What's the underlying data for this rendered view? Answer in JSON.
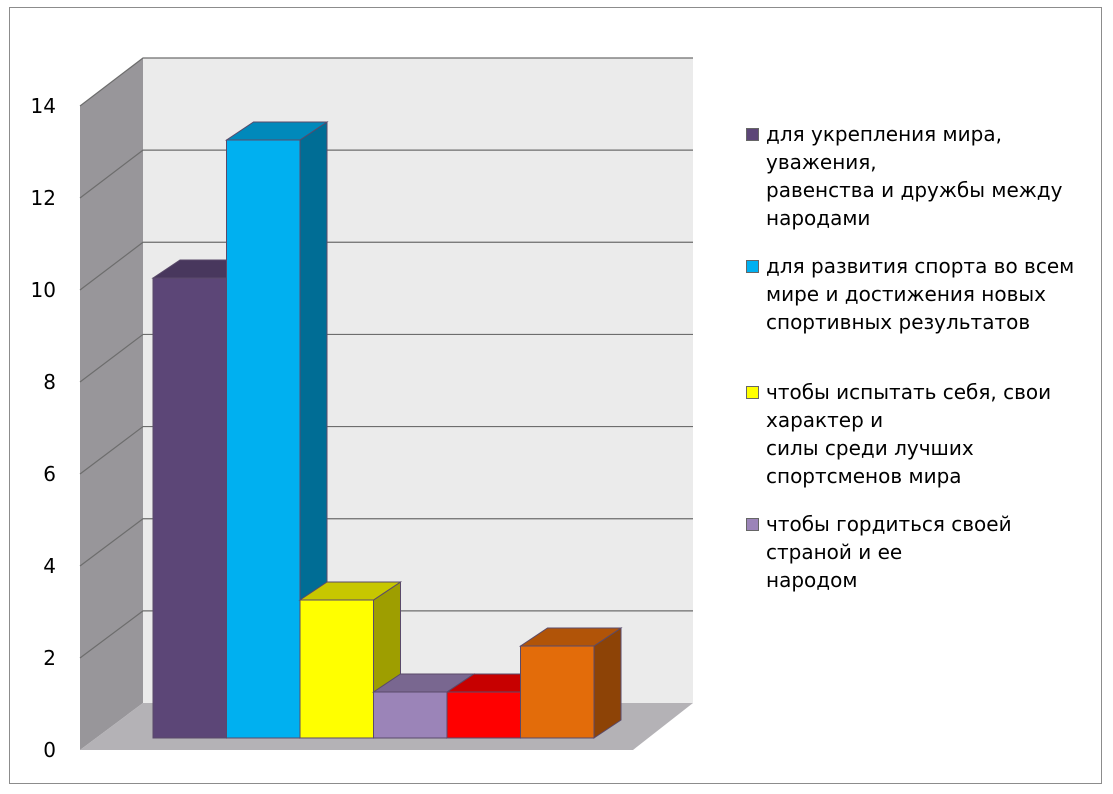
{
  "chart_data": {
    "type": "bar",
    "title": "",
    "xlabel": "",
    "ylabel": "",
    "ylim": [
      0,
      14
    ],
    "yticks": [
      0,
      2,
      4,
      6,
      8,
      10,
      12,
      14
    ],
    "grid": true,
    "legend_position": "right",
    "style": "3d-columns",
    "series": [
      {
        "name": "для укрепления мира,\nуважения,\nравенства и дружбы между\nнародами",
        "value": 10,
        "color": "#5c4677"
      },
      {
        "name": "для развития спорта во всем\nмире и достижения новых\nспортивных результатов",
        "value": 13,
        "color": "#00b0f0"
      },
      {
        "name": "чтобы испытать себя, свои\nхарактер и\nсилы среди лучших\nспортсменов мира",
        "value": 3,
        "color": "#ffff00"
      },
      {
        "name": "чтобы гордиться своей\nстраной и ее\nнародом",
        "value": 1,
        "color": "#9b84b8"
      },
      {
        "name": "",
        "value": 1,
        "color": "#ff0000"
      },
      {
        "name": "",
        "value": 2,
        "color": "#e36c0a"
      }
    ]
  }
}
